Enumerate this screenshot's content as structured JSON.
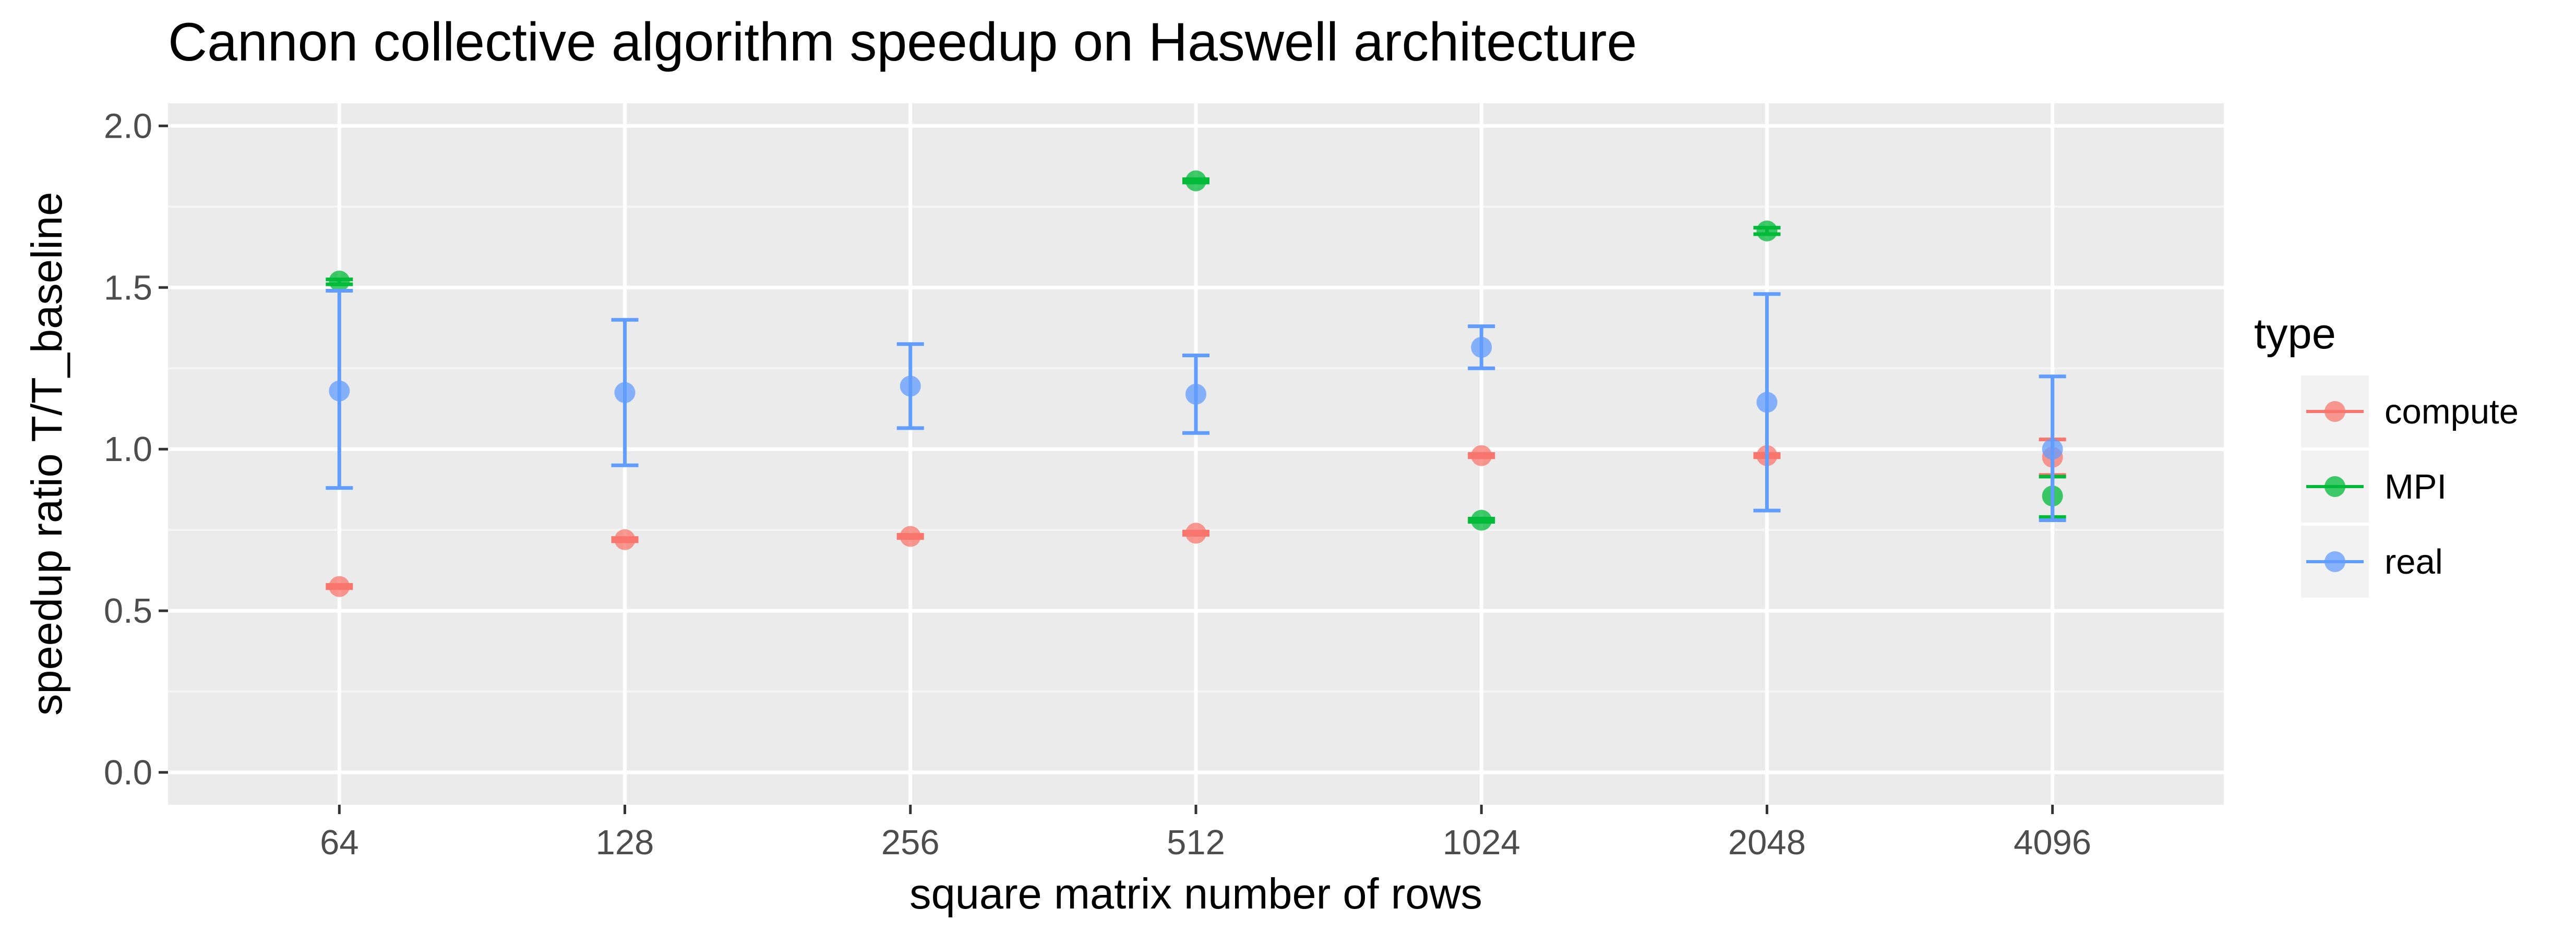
{
  "chart_data": {
    "type": "scatter",
    "title": "Cannon collective algorithm speedup on Haswell architecture",
    "xlabel": "square matrix number of rows",
    "ylabel": "speedup ratio T/T_baseline",
    "categories": [
      "64",
      "128",
      "256",
      "512",
      "1024",
      "2048",
      "4096"
    ],
    "ylim": [
      -0.1,
      2.07
    ],
    "y_ticks": [
      0.0,
      0.5,
      1.0,
      1.5,
      2.0
    ],
    "y_tick_labels": [
      "0.0",
      "0.5",
      "1.0",
      "1.5",
      "2.0"
    ],
    "grid": true,
    "legend": {
      "title": "type",
      "position": "right"
    },
    "series": [
      {
        "name": "compute",
        "color": "#F8766D",
        "values": [
          0.575,
          0.72,
          0.73,
          0.74,
          0.98,
          0.98,
          0.975
        ],
        "error_low": [
          0.57,
          0.715,
          0.725,
          0.735,
          0.975,
          0.975,
          0.92
        ],
        "error_high": [
          0.58,
          0.725,
          0.735,
          0.745,
          0.985,
          0.985,
          1.03
        ]
      },
      {
        "name": "MPI",
        "color": "#00BA38",
        "values": [
          1.52,
          null,
          null,
          1.83,
          0.78,
          1.675,
          0.855
        ],
        "error_low": [
          1.51,
          null,
          null,
          1.825,
          0.775,
          1.665,
          0.79
        ],
        "error_high": [
          1.525,
          null,
          null,
          1.835,
          0.785,
          1.685,
          0.915
        ]
      },
      {
        "name": "real",
        "color": "#619CFF",
        "values": [
          1.18,
          1.175,
          1.195,
          1.17,
          1.315,
          1.145,
          1.0
        ],
        "error_low": [
          0.88,
          0.95,
          1.065,
          1.05,
          1.25,
          0.81,
          0.78
        ],
        "error_high": [
          1.49,
          1.4,
          1.325,
          1.29,
          1.38,
          1.48,
          1.225
        ]
      }
    ]
  }
}
